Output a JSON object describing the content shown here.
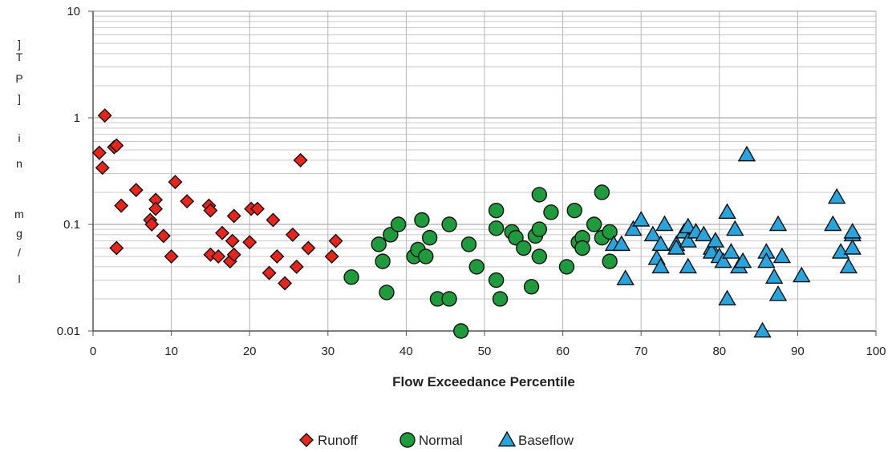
{
  "chart_data": {
    "type": "scatter",
    "title": "",
    "xlabel": "Flow Exceedance Percentile",
    "ylabel": "TP [ in mg/l ]",
    "ylabel_chars": [
      "T",
      "P",
      "]",
      "i",
      "n",
      "m",
      "g",
      "/",
      "l"
    ],
    "xlim": [
      0,
      100
    ],
    "ylim": [
      0.01,
      10
    ],
    "yscale": "log",
    "x_ticks": [
      "0",
      "10",
      "20",
      "30",
      "40",
      "50",
      "60",
      "70",
      "80",
      "90",
      "100"
    ],
    "y_ticks": [
      "0.01",
      "0.1",
      "1",
      "10"
    ],
    "grid": "horizontal minor log gridlines, vertical gridlines every 10",
    "legend_position": "bottom-center",
    "series": [
      {
        "name": "Runoff",
        "marker": "diamond",
        "color": "#e8251c",
        "points": [
          [
            0.8,
            0.47
          ],
          [
            1.2,
            0.34
          ],
          [
            1.5,
            1.05
          ],
          [
            2.7,
            0.53
          ],
          [
            3.0,
            0.55
          ],
          [
            3.0,
            0.06
          ],
          [
            3.6,
            0.15
          ],
          [
            5.5,
            0.21
          ],
          [
            7.3,
            0.11
          ],
          [
            7.5,
            0.1
          ],
          [
            8.0,
            0.17
          ],
          [
            8.0,
            0.14
          ],
          [
            9.0,
            0.078
          ],
          [
            10.0,
            0.05
          ],
          [
            10.5,
            0.25
          ],
          [
            12.0,
            0.165
          ],
          [
            14.8,
            0.15
          ],
          [
            15.0,
            0.052
          ],
          [
            15.0,
            0.135
          ],
          [
            16.0,
            0.05
          ],
          [
            16.5,
            0.083
          ],
          [
            17.5,
            0.045
          ],
          [
            17.8,
            0.07
          ],
          [
            18.0,
            0.12
          ],
          [
            18.0,
            0.052
          ],
          [
            20.0,
            0.068
          ],
          [
            20.2,
            0.14
          ],
          [
            21.0,
            0.14
          ],
          [
            22.5,
            0.035
          ],
          [
            23.0,
            0.11
          ],
          [
            23.5,
            0.05
          ],
          [
            24.5,
            0.028
          ],
          [
            25.5,
            0.08
          ],
          [
            26.0,
            0.04
          ],
          [
            26.5,
            0.4
          ],
          [
            27.5,
            0.06
          ],
          [
            30.5,
            0.05
          ],
          [
            31.0,
            0.07
          ]
        ]
      },
      {
        "name": "Normal",
        "marker": "circle",
        "color": "#1f9a3c",
        "points": [
          [
            33.0,
            0.032
          ],
          [
            36.5,
            0.065
          ],
          [
            37.0,
            0.045
          ],
          [
            37.5,
            0.023
          ],
          [
            38.0,
            0.08
          ],
          [
            39.0,
            0.1
          ],
          [
            41.0,
            0.05
          ],
          [
            41.5,
            0.058
          ],
          [
            42.0,
            0.11
          ],
          [
            42.5,
            0.05
          ],
          [
            43.0,
            0.075
          ],
          [
            44.0,
            0.02
          ],
          [
            45.5,
            0.02
          ],
          [
            45.5,
            0.1
          ],
          [
            47.0,
            0.01
          ],
          [
            48.0,
            0.065
          ],
          [
            49.0,
            0.04
          ],
          [
            51.5,
            0.03
          ],
          [
            51.5,
            0.135
          ],
          [
            51.5,
            0.092
          ],
          [
            52.0,
            0.02
          ],
          [
            53.5,
            0.085
          ],
          [
            54.0,
            0.075
          ],
          [
            55.0,
            0.06
          ],
          [
            56.0,
            0.026
          ],
          [
            56.5,
            0.078
          ],
          [
            57.0,
            0.05
          ],
          [
            57.0,
            0.09
          ],
          [
            57.0,
            0.19
          ],
          [
            58.5,
            0.13
          ],
          [
            60.5,
            0.04
          ],
          [
            61.5,
            0.135
          ],
          [
            62.0,
            0.068
          ],
          [
            62.5,
            0.075
          ],
          [
            62.5,
            0.06
          ],
          [
            64.0,
            0.1
          ],
          [
            65.0,
            0.2
          ],
          [
            65.0,
            0.075
          ],
          [
            66.0,
            0.085
          ],
          [
            66.0,
            0.045
          ]
        ]
      },
      {
        "name": "Baseflow",
        "marker": "triangle",
        "color": "#29a4dd",
        "points": [
          [
            66.5,
            0.065
          ],
          [
            67.5,
            0.065
          ],
          [
            68.0,
            0.031
          ],
          [
            69.0,
            0.09
          ],
          [
            70.0,
            0.11
          ],
          [
            71.5,
            0.08
          ],
          [
            72.0,
            0.048
          ],
          [
            72.5,
            0.04
          ],
          [
            72.5,
            0.065
          ],
          [
            73.0,
            0.1
          ],
          [
            74.5,
            0.065
          ],
          [
            74.5,
            0.06
          ],
          [
            75.5,
            0.085
          ],
          [
            76.0,
            0.04
          ],
          [
            76.0,
            0.07
          ],
          [
            76.0,
            0.095
          ],
          [
            77.0,
            0.085
          ],
          [
            78.0,
            0.08
          ],
          [
            79.0,
            0.06
          ],
          [
            79.0,
            0.055
          ],
          [
            79.5,
            0.07
          ],
          [
            80.0,
            0.05
          ],
          [
            80.5,
            0.045
          ],
          [
            81.0,
            0.02
          ],
          [
            81.0,
            0.13
          ],
          [
            81.5,
            0.055
          ],
          [
            82.0,
            0.09
          ],
          [
            82.5,
            0.04
          ],
          [
            83.0,
            0.045
          ],
          [
            83.5,
            0.45
          ],
          [
            85.5,
            0.01
          ],
          [
            86.0,
            0.055
          ],
          [
            86.0,
            0.045
          ],
          [
            87.0,
            0.032
          ],
          [
            87.5,
            0.1
          ],
          [
            87.5,
            0.022
          ],
          [
            88.0,
            0.05
          ],
          [
            90.5,
            0.033
          ],
          [
            94.5,
            0.1
          ],
          [
            95.0,
            0.18
          ],
          [
            95.5,
            0.055
          ],
          [
            96.5,
            0.04
          ],
          [
            97.0,
            0.08
          ],
          [
            97.0,
            0.06
          ],
          [
            97.0,
            0.085
          ]
        ]
      }
    ]
  }
}
